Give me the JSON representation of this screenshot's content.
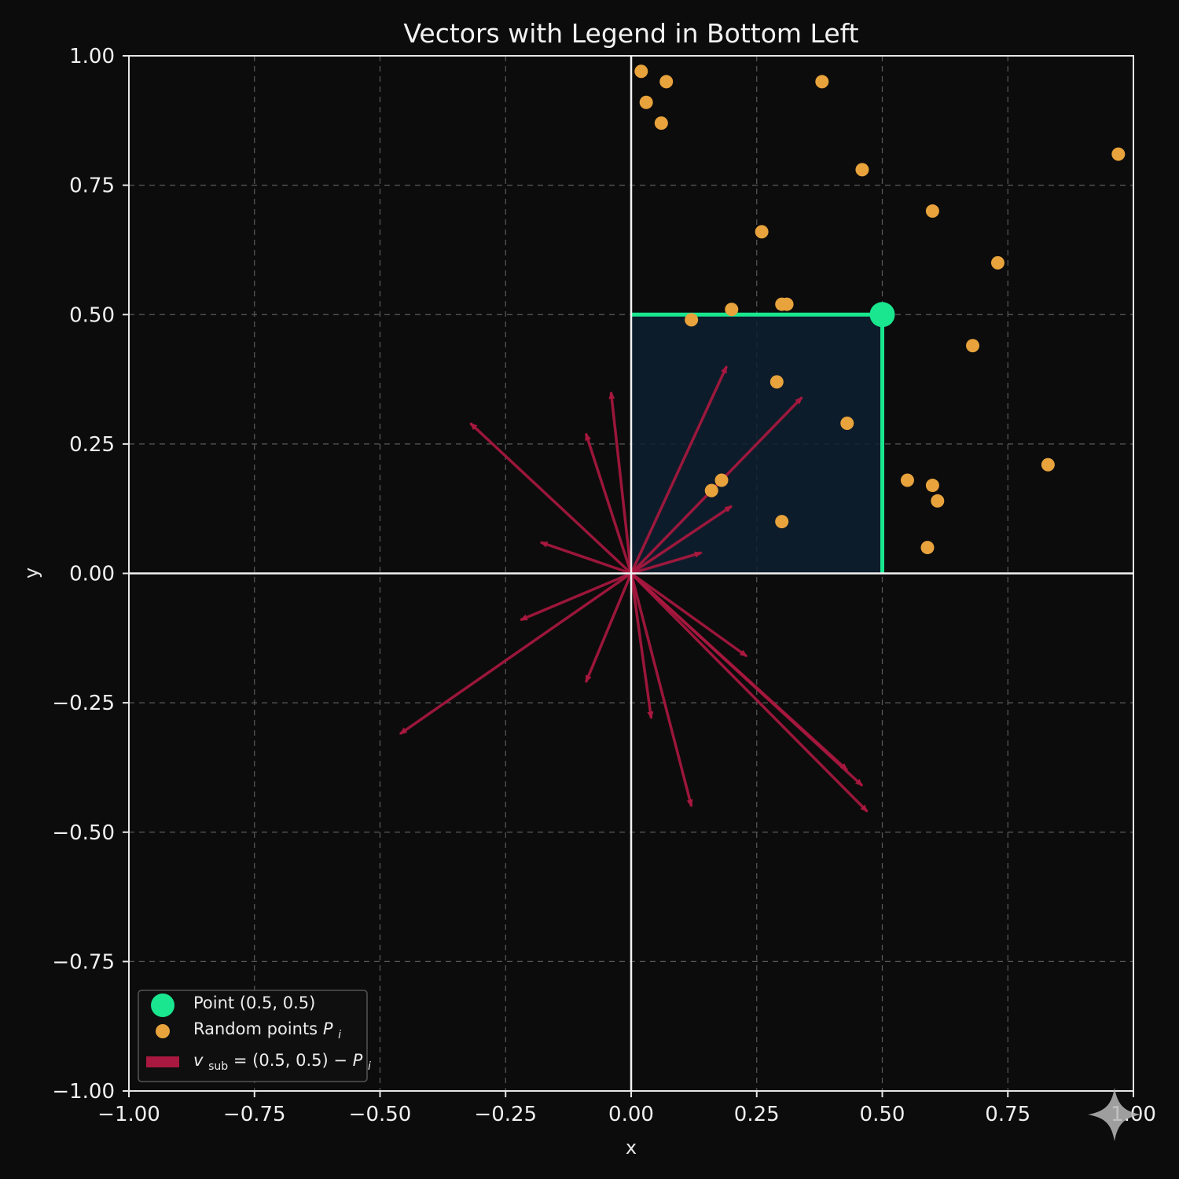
{
  "chart_data": {
    "type": "scatter",
    "title": "Vectors with Legend in Bottom Left",
    "xlabel": "x",
    "ylabel": "y",
    "xlim": [
      -1.0,
      1.0
    ],
    "ylim": [
      -1.0,
      1.0
    ],
    "grid": true,
    "x_ticks": [
      "−1.00",
      "−0.75",
      "−0.50",
      "−0.25",
      "0.00",
      "0.25",
      "0.50",
      "0.75",
      "1.00"
    ],
    "y_ticks": [
      "−1.00",
      "−0.75",
      "−0.50",
      "−0.25",
      "0.00",
      "0.25",
      "0.50",
      "0.75",
      "1.00"
    ],
    "x_tick_values": [
      -1.0,
      -0.75,
      -0.5,
      -0.25,
      0.0,
      0.25,
      0.5,
      0.75,
      1.0
    ],
    "y_tick_values": [
      -1.0,
      -0.75,
      -0.5,
      -0.25,
      0.0,
      0.25,
      0.5,
      0.75,
      1.0
    ],
    "legend_position": "bottom-left",
    "legend": {
      "point": "Point (0.5, 0.5)",
      "random_points": "Random points",
      "random_points_symbol": "P",
      "random_points_sub": "i",
      "vector_v": "v",
      "vector_sub": "sub",
      "vector_rhs": " = (0.5, 0.5) − ",
      "vector_p": "P",
      "vector_p_sub": "i"
    },
    "colors": {
      "background": "#0c0c0c",
      "point": "#19e68f",
      "random_points": "#e8a33c",
      "vectors": "#a8183f",
      "highlight_box": "#19e68f",
      "box_fill": "#0e2030"
    },
    "highlight_point": [
      0.5,
      0.5
    ],
    "highlight_box": {
      "x0": 0.0,
      "y0": 0.0,
      "x1": 0.5,
      "y1": 0.5
    },
    "random_points": [
      [
        0.02,
        0.97
      ],
      [
        0.07,
        0.95
      ],
      [
        0.03,
        0.91
      ],
      [
        0.06,
        0.87
      ],
      [
        0.38,
        0.95
      ],
      [
        0.97,
        0.81
      ],
      [
        0.46,
        0.78
      ],
      [
        0.6,
        0.7
      ],
      [
        0.26,
        0.66
      ],
      [
        0.73,
        0.6
      ],
      [
        0.12,
        0.49
      ],
      [
        0.2,
        0.51
      ],
      [
        0.3,
        0.52
      ],
      [
        0.31,
        0.52
      ],
      [
        0.68,
        0.44
      ],
      [
        0.29,
        0.37
      ],
      [
        0.43,
        0.29
      ],
      [
        0.83,
        0.21
      ],
      [
        0.55,
        0.18
      ],
      [
        0.6,
        0.17
      ],
      [
        0.61,
        0.14
      ],
      [
        0.18,
        0.18
      ],
      [
        0.16,
        0.16
      ],
      [
        0.3,
        0.1
      ],
      [
        0.59,
        0.05
      ]
    ],
    "vectors": [
      [
        -0.32,
        0.29
      ],
      [
        -0.18,
        0.06
      ],
      [
        -0.22,
        -0.09
      ],
      [
        -0.09,
        -0.21
      ],
      [
        -0.46,
        -0.31
      ],
      [
        0.04,
        -0.28
      ],
      [
        0.12,
        -0.45
      ],
      [
        0.23,
        -0.16
      ],
      [
        0.43,
        -0.38
      ],
      [
        0.46,
        -0.41
      ],
      [
        0.47,
        -0.46
      ],
      [
        0.19,
        0.4
      ],
      [
        0.34,
        0.34
      ],
      [
        0.2,
        0.13
      ],
      [
        0.14,
        0.04
      ],
      [
        -0.04,
        0.35
      ],
      [
        -0.09,
        0.27
      ]
    ]
  }
}
